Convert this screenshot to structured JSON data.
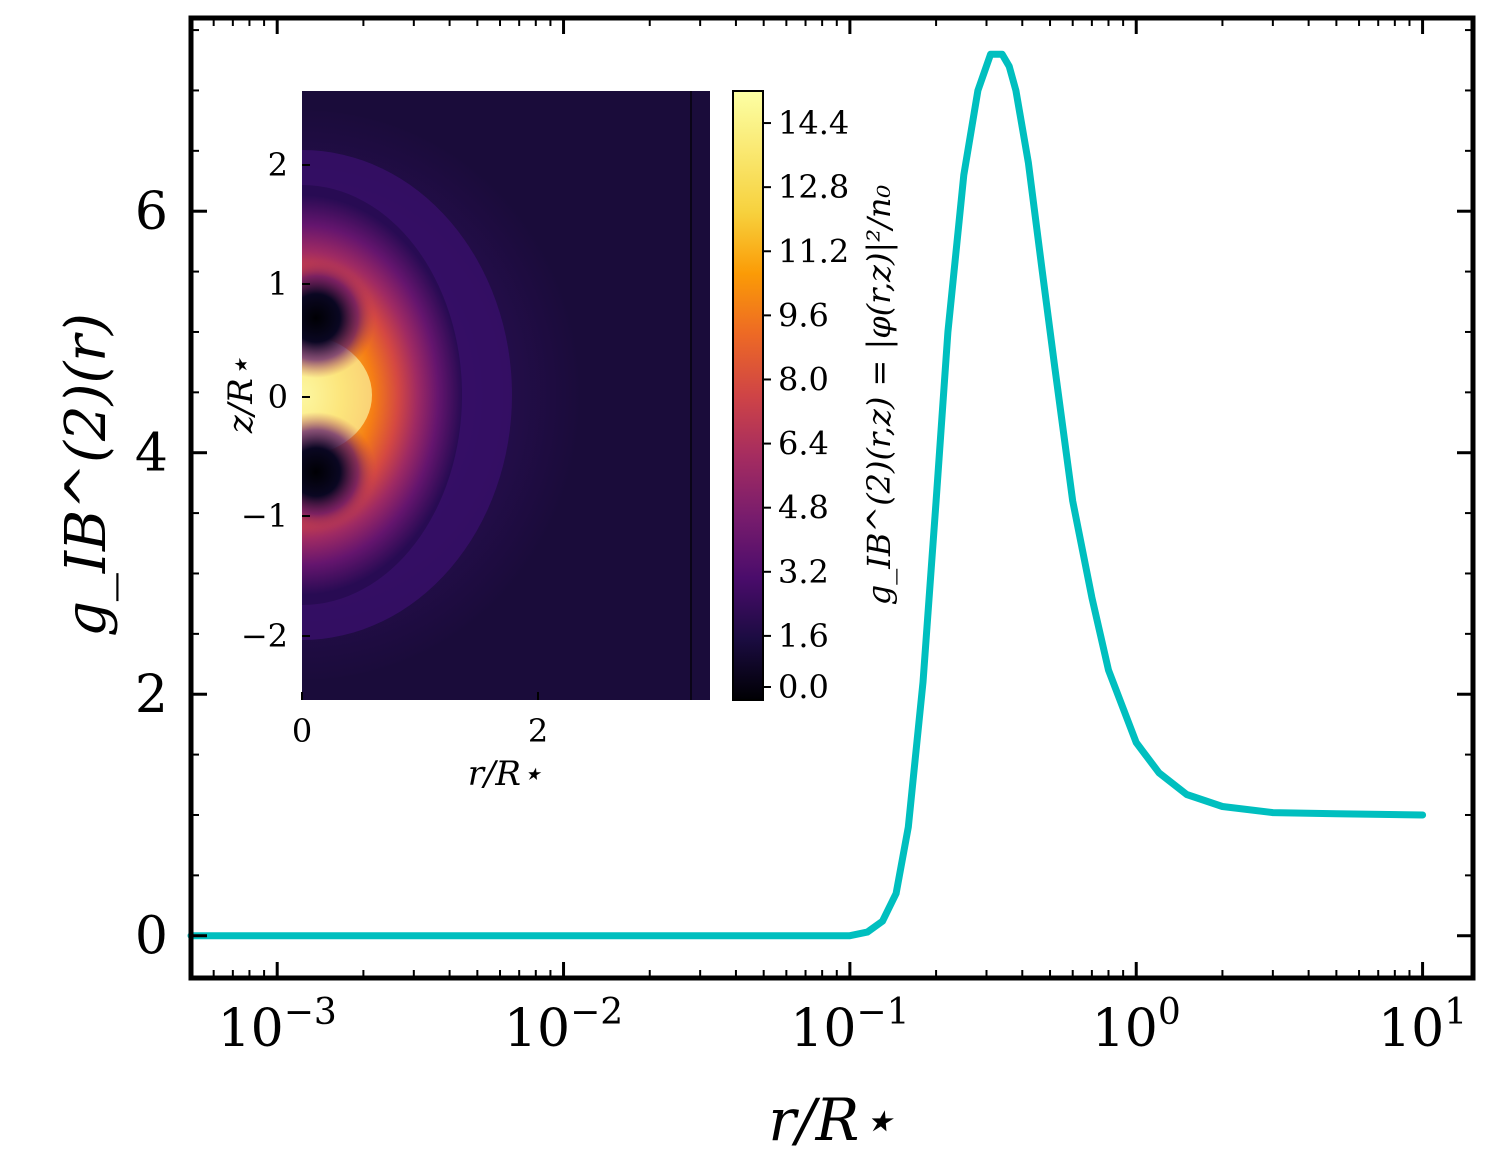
{
  "chart_data": [
    {
      "type": "line",
      "xscale": "log",
      "xlim": [
        0.0005,
        15
      ],
      "ylim": [
        -0.35,
        7.6
      ],
      "xlabel": "r/R⋆",
      "ylabel": "g_IB^(2)(r)",
      "xticks": [
        {
          "value": 0.001,
          "base": "10",
          "exp": "−3"
        },
        {
          "value": 0.01,
          "base": "10",
          "exp": "−2"
        },
        {
          "value": 0.1,
          "base": "10",
          "exp": "−1"
        },
        {
          "value": 1,
          "base": "10",
          "exp": "0"
        },
        {
          "value": 10,
          "base": "10",
          "exp": "1"
        }
      ],
      "yticks": [
        "0",
        "2",
        "4",
        "6"
      ],
      "grid": false,
      "series": [
        {
          "color": "#00bfbf",
          "x": [
            0.0005,
            0.001,
            0.01,
            0.05,
            0.1,
            0.115,
            0.13,
            0.145,
            0.16,
            0.18,
            0.2,
            0.22,
            0.25,
            0.28,
            0.31,
            0.34,
            0.36,
            0.38,
            0.42,
            0.47,
            0.52,
            0.6,
            0.7,
            0.8,
            1.0,
            1.2,
            1.5,
            2.0,
            3.0,
            5.0,
            10.0
          ],
          "y": [
            0.0,
            0.0,
            0.0,
            0.0,
            0.0,
            0.03,
            0.12,
            0.35,
            0.9,
            2.1,
            3.6,
            5.0,
            6.3,
            7.0,
            7.3,
            7.3,
            7.2,
            7.0,
            6.4,
            5.5,
            4.7,
            3.6,
            2.8,
            2.2,
            1.6,
            1.35,
            1.17,
            1.07,
            1.02,
            1.01,
            1.0
          ]
        }
      ]
    },
    {
      "type": "heatmap",
      "xlabel": "r/R⋆",
      "ylabel": "z/R⋆",
      "xlim": [
        0,
        3.5
      ],
      "ylim": [
        -2.6,
        2.6
      ],
      "xticks": [
        "0",
        "2"
      ],
      "yticks": [
        "2",
        "1",
        "0",
        "−1",
        "−2"
      ],
      "colormap": "inferno",
      "colorbar": {
        "label": "g_IB^(2)(r,z) = |φ(r,z)|²/n₀",
        "range": [
          0,
          15.2
        ],
        "ticks": [
          "0.0",
          "1.6",
          "3.2",
          "4.8",
          "6.4",
          "8.0",
          "9.6",
          "11.2",
          "12.8",
          "14.4"
        ]
      },
      "peak_value": 15.2,
      "minima": [
        {
          "r": 0,
          "z": 0.65
        },
        {
          "r": 0,
          "z": -0.65
        }
      ],
      "maximum": {
        "r": 0.1,
        "z": 0
      }
    }
  ]
}
